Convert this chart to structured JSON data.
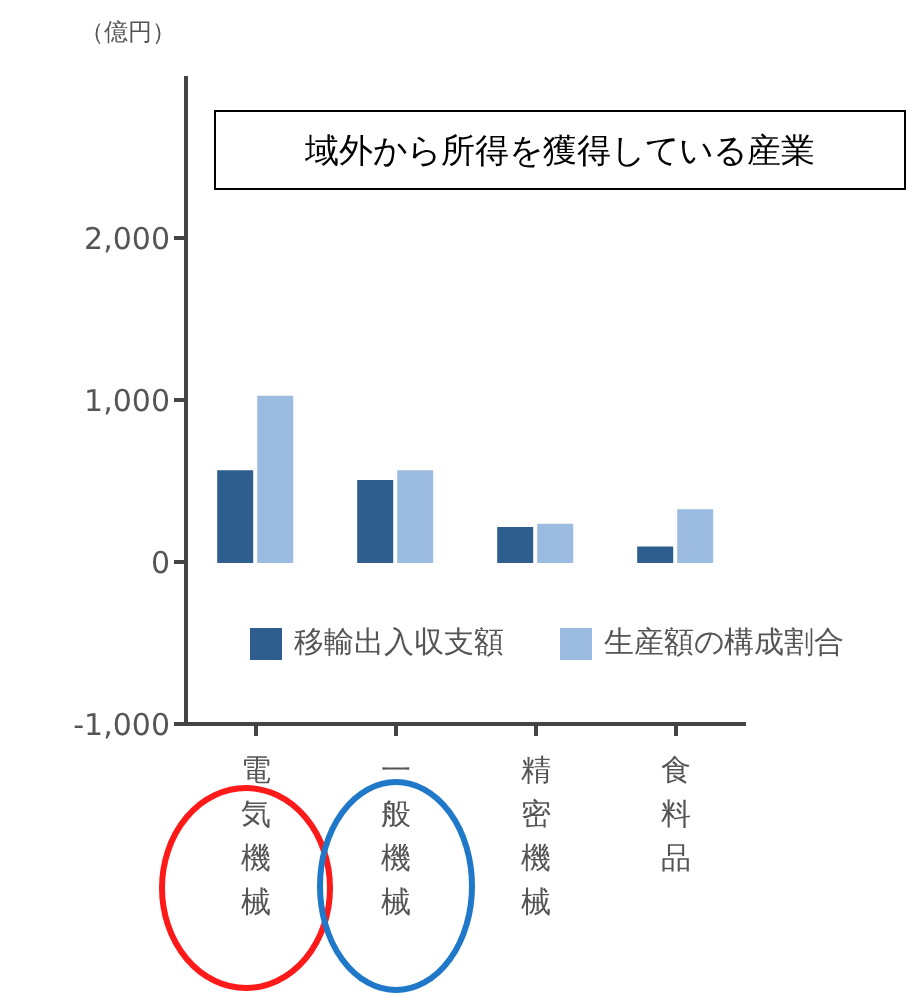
{
  "chart_data": {
    "type": "bar",
    "title": "域外から所得を獲得している産業",
    "ylabel": "（億円）",
    "categories": [
      "電気機械",
      "一般機械",
      "精密機械",
      "食料品"
    ],
    "series": [
      {
        "name": "移輸出入収支額",
        "color": "#2e5e8e",
        "values": [
          560,
          500,
          210,
          90
        ]
      },
      {
        "name": "生産額の構成割合",
        "color": "#9bbbe0",
        "values": [
          1020,
          560,
          230,
          320
        ]
      }
    ],
    "ylim": [
      -1000,
      3000
    ],
    "yticks": [
      {
        "value": -1000,
        "label": "-1,000"
      },
      {
        "value": 0,
        "label": "0"
      },
      {
        "value": 1000,
        "label": "1,000"
      },
      {
        "value": 2000,
        "label": "2,000"
      }
    ],
    "legend": "center",
    "grid": false
  }
}
